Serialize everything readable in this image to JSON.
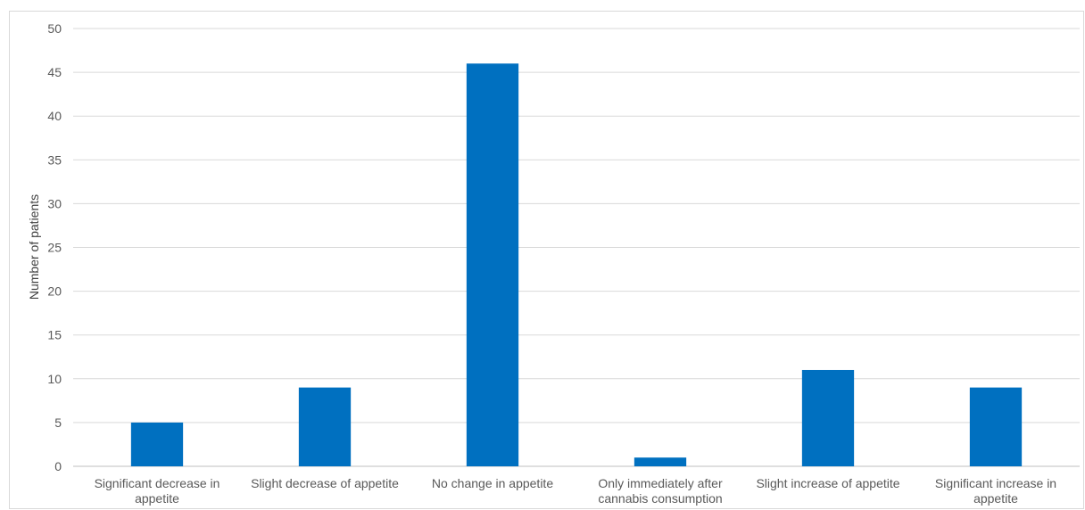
{
  "chart_data": {
    "type": "bar",
    "title": "",
    "xlabel": "",
    "ylabel": "Number of patients",
    "categories": [
      [
        "Significant decrease in",
        "appetite"
      ],
      [
        "Slight decrease of appetite"
      ],
      [
        "No change in appetite"
      ],
      [
        "Only immediately after",
        "cannabis consumption"
      ],
      [
        "Slight increase of appetite"
      ],
      [
        "Significant increase in",
        "appetite"
      ]
    ],
    "values": [
      5,
      9,
      46,
      1,
      11,
      9
    ],
    "ylim": [
      0,
      50
    ],
    "yticks": [
      "0",
      "5",
      "10",
      "15",
      "20",
      "25",
      "30",
      "35",
      "40",
      "45",
      "50"
    ],
    "grid": true,
    "legend": "none",
    "bar_color": "#0070C0",
    "grid_color": "#d9d9d9",
    "axis_color": "#bfbfbf"
  }
}
